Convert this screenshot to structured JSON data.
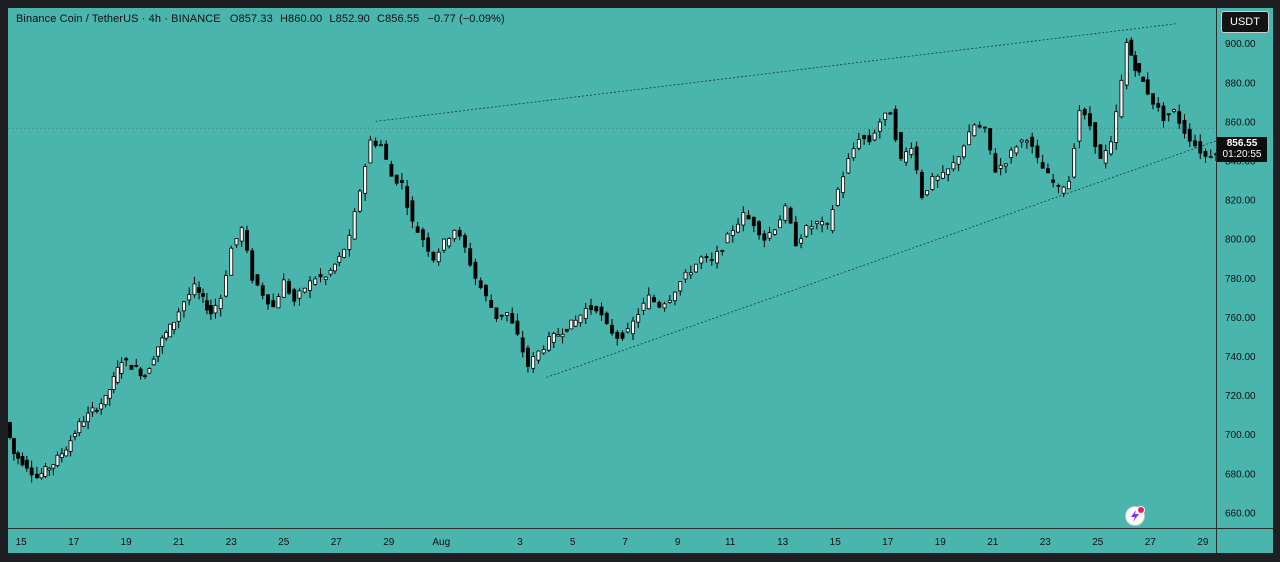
{
  "legend": {
    "symbol": "Binance Coin / TetherUS · 4h · BINANCE",
    "open": "O857.33",
    "high": "H860.00",
    "low": "L852.90",
    "close": "C856.55",
    "change": "−0.77 (−0.09%)"
  },
  "currency_button": "USDT",
  "last_price": {
    "price": "856.55",
    "countdown": "01:20:55"
  },
  "colors": {
    "background": "#4ab5ad",
    "up_body": "#ffffff",
    "down_body": "#000000",
    "wick": "#000000",
    "text": "#101010"
  },
  "icons": {
    "lightning": "lightning-icon"
  },
  "chart_data": {
    "type": "candlestick",
    "y_ticks": [
      "900.00",
      "880.00",
      "860.00",
      "840.00",
      "820.00",
      "800.00",
      "780.00",
      "760.00",
      "740.00",
      "720.00",
      "700.00",
      "680.00",
      "660.00"
    ],
    "ylim": [
      652,
      918
    ],
    "x_ticks": [
      "15",
      "17",
      "19",
      "21",
      "23",
      "25",
      "27",
      "29",
      "Aug",
      "3",
      "5",
      "7",
      "9",
      "11",
      "13",
      "15",
      "17",
      "19",
      "21",
      "23",
      "25",
      "27",
      "29"
    ],
    "x_domain_days": [
      14.5,
      60.5
    ],
    "trendlines": [
      {
        "name": "upper",
        "from": {
          "day": 28.5,
          "price": 860
        },
        "to": {
          "day": 59,
          "price": 910
        }
      },
      {
        "name": "lower",
        "from": {
          "day": 35,
          "price": 729
        },
        "to": {
          "day": 60.5,
          "price": 850
        }
      }
    ],
    "series_closes": [
      {
        "day": 14.5,
        "price": 706
      },
      {
        "day": 14.8,
        "price": 690
      },
      {
        "day": 15.3,
        "price": 684
      },
      {
        "day": 15.7,
        "price": 678
      },
      {
        "day": 16.3,
        "price": 685
      },
      {
        "day": 16.8,
        "price": 693
      },
      {
        "day": 17.3,
        "price": 705
      },
      {
        "day": 17.8,
        "price": 712
      },
      {
        "day": 18.3,
        "price": 718
      },
      {
        "day": 18.9,
        "price": 738
      },
      {
        "day": 19.3,
        "price": 735
      },
      {
        "day": 19.8,
        "price": 730
      },
      {
        "day": 20.3,
        "price": 745
      },
      {
        "day": 20.9,
        "price": 758
      },
      {
        "day": 21.3,
        "price": 768
      },
      {
        "day": 21.7,
        "price": 775
      },
      {
        "day": 22.3,
        "price": 762
      },
      {
        "day": 22.7,
        "price": 770
      },
      {
        "day": 23.1,
        "price": 795
      },
      {
        "day": 23.5,
        "price": 805
      },
      {
        "day": 23.9,
        "price": 780
      },
      {
        "day": 24.3,
        "price": 772
      },
      {
        "day": 24.7,
        "price": 765
      },
      {
        "day": 25.1,
        "price": 778
      },
      {
        "day": 25.5,
        "price": 768
      },
      {
        "day": 25.9,
        "price": 775
      },
      {
        "day": 26.3,
        "price": 780
      },
      {
        "day": 26.7,
        "price": 780
      },
      {
        "day": 27.2,
        "price": 790
      },
      {
        "day": 27.6,
        "price": 800
      },
      {
        "day": 28.0,
        "price": 825
      },
      {
        "day": 28.4,
        "price": 850
      },
      {
        "day": 28.8,
        "price": 848
      },
      {
        "day": 29.2,
        "price": 832
      },
      {
        "day": 29.6,
        "price": 828
      },
      {
        "day": 30.0,
        "price": 808
      },
      {
        "day": 30.4,
        "price": 800
      },
      {
        "day": 30.8,
        "price": 790
      },
      {
        "day": 31.2,
        "price": 798
      },
      {
        "day": 31.6,
        "price": 805
      },
      {
        "day": 32.0,
        "price": 795
      },
      {
        "day": 32.4,
        "price": 780
      },
      {
        "day": 32.8,
        "price": 770
      },
      {
        "day": 33.2,
        "price": 760
      },
      {
        "day": 33.6,
        "price": 762
      },
      {
        "day": 34.0,
        "price": 750
      },
      {
        "day": 34.4,
        "price": 735
      },
      {
        "day": 34.8,
        "price": 742
      },
      {
        "day": 35.2,
        "price": 748
      },
      {
        "day": 35.7,
        "price": 753
      },
      {
        "day": 36.2,
        "price": 758
      },
      {
        "day": 36.6,
        "price": 764
      },
      {
        "day": 37.0,
        "price": 765
      },
      {
        "day": 37.4,
        "price": 755
      },
      {
        "day": 37.8,
        "price": 750
      },
      {
        "day": 38.2,
        "price": 752
      },
      {
        "day": 38.6,
        "price": 762
      },
      {
        "day": 39.0,
        "price": 770
      },
      {
        "day": 39.4,
        "price": 766
      },
      {
        "day": 39.8,
        "price": 770
      },
      {
        "day": 40.2,
        "price": 778
      },
      {
        "day": 40.6,
        "price": 784
      },
      {
        "day": 41.0,
        "price": 790
      },
      {
        "day": 41.4,
        "price": 788
      },
      {
        "day": 41.8,
        "price": 796
      },
      {
        "day": 42.2,
        "price": 805
      },
      {
        "day": 42.6,
        "price": 812
      },
      {
        "day": 43.0,
        "price": 808
      },
      {
        "day": 43.4,
        "price": 800
      },
      {
        "day": 43.8,
        "price": 806
      },
      {
        "day": 44.2,
        "price": 815
      },
      {
        "day": 44.6,
        "price": 798
      },
      {
        "day": 45.0,
        "price": 805
      },
      {
        "day": 45.4,
        "price": 808
      },
      {
        "day": 45.8,
        "price": 806
      },
      {
        "day": 46.2,
        "price": 825
      },
      {
        "day": 46.6,
        "price": 840
      },
      {
        "day": 47.0,
        "price": 852
      },
      {
        "day": 47.4,
        "price": 850
      },
      {
        "day": 47.8,
        "price": 860
      },
      {
        "day": 48.2,
        "price": 865
      },
      {
        "day": 48.6,
        "price": 840
      },
      {
        "day": 49.0,
        "price": 848
      },
      {
        "day": 49.4,
        "price": 822
      },
      {
        "day": 49.8,
        "price": 830
      },
      {
        "day": 50.2,
        "price": 832
      },
      {
        "day": 50.6,
        "price": 838
      },
      {
        "day": 51.0,
        "price": 848
      },
      {
        "day": 51.4,
        "price": 858
      },
      {
        "day": 51.8,
        "price": 855
      },
      {
        "day": 52.2,
        "price": 835
      },
      {
        "day": 52.6,
        "price": 840
      },
      {
        "day": 53.0,
        "price": 848
      },
      {
        "day": 53.4,
        "price": 852
      },
      {
        "day": 53.8,
        "price": 840
      },
      {
        "day": 54.2,
        "price": 832
      },
      {
        "day": 54.6,
        "price": 825
      },
      {
        "day": 55.0,
        "price": 830
      },
      {
        "day": 55.4,
        "price": 866
      },
      {
        "day": 55.8,
        "price": 858
      },
      {
        "day": 56.2,
        "price": 840
      },
      {
        "day": 56.6,
        "price": 848
      },
      {
        "day": 57.0,
        "price": 880
      },
      {
        "day": 57.2,
        "price": 900
      },
      {
        "day": 57.5,
        "price": 888
      },
      {
        "day": 57.8,
        "price": 880
      },
      {
        "day": 58.2,
        "price": 870
      },
      {
        "day": 58.6,
        "price": 862
      },
      {
        "day": 59.0,
        "price": 865
      },
      {
        "day": 59.4,
        "price": 855
      },
      {
        "day": 59.8,
        "price": 848
      },
      {
        "day": 60.2,
        "price": 842
      },
      {
        "day": 60.6,
        "price": 845
      },
      {
        "day": 61.0,
        "price": 858
      },
      {
        "day": 61.3,
        "price": 856.55
      }
    ]
  }
}
